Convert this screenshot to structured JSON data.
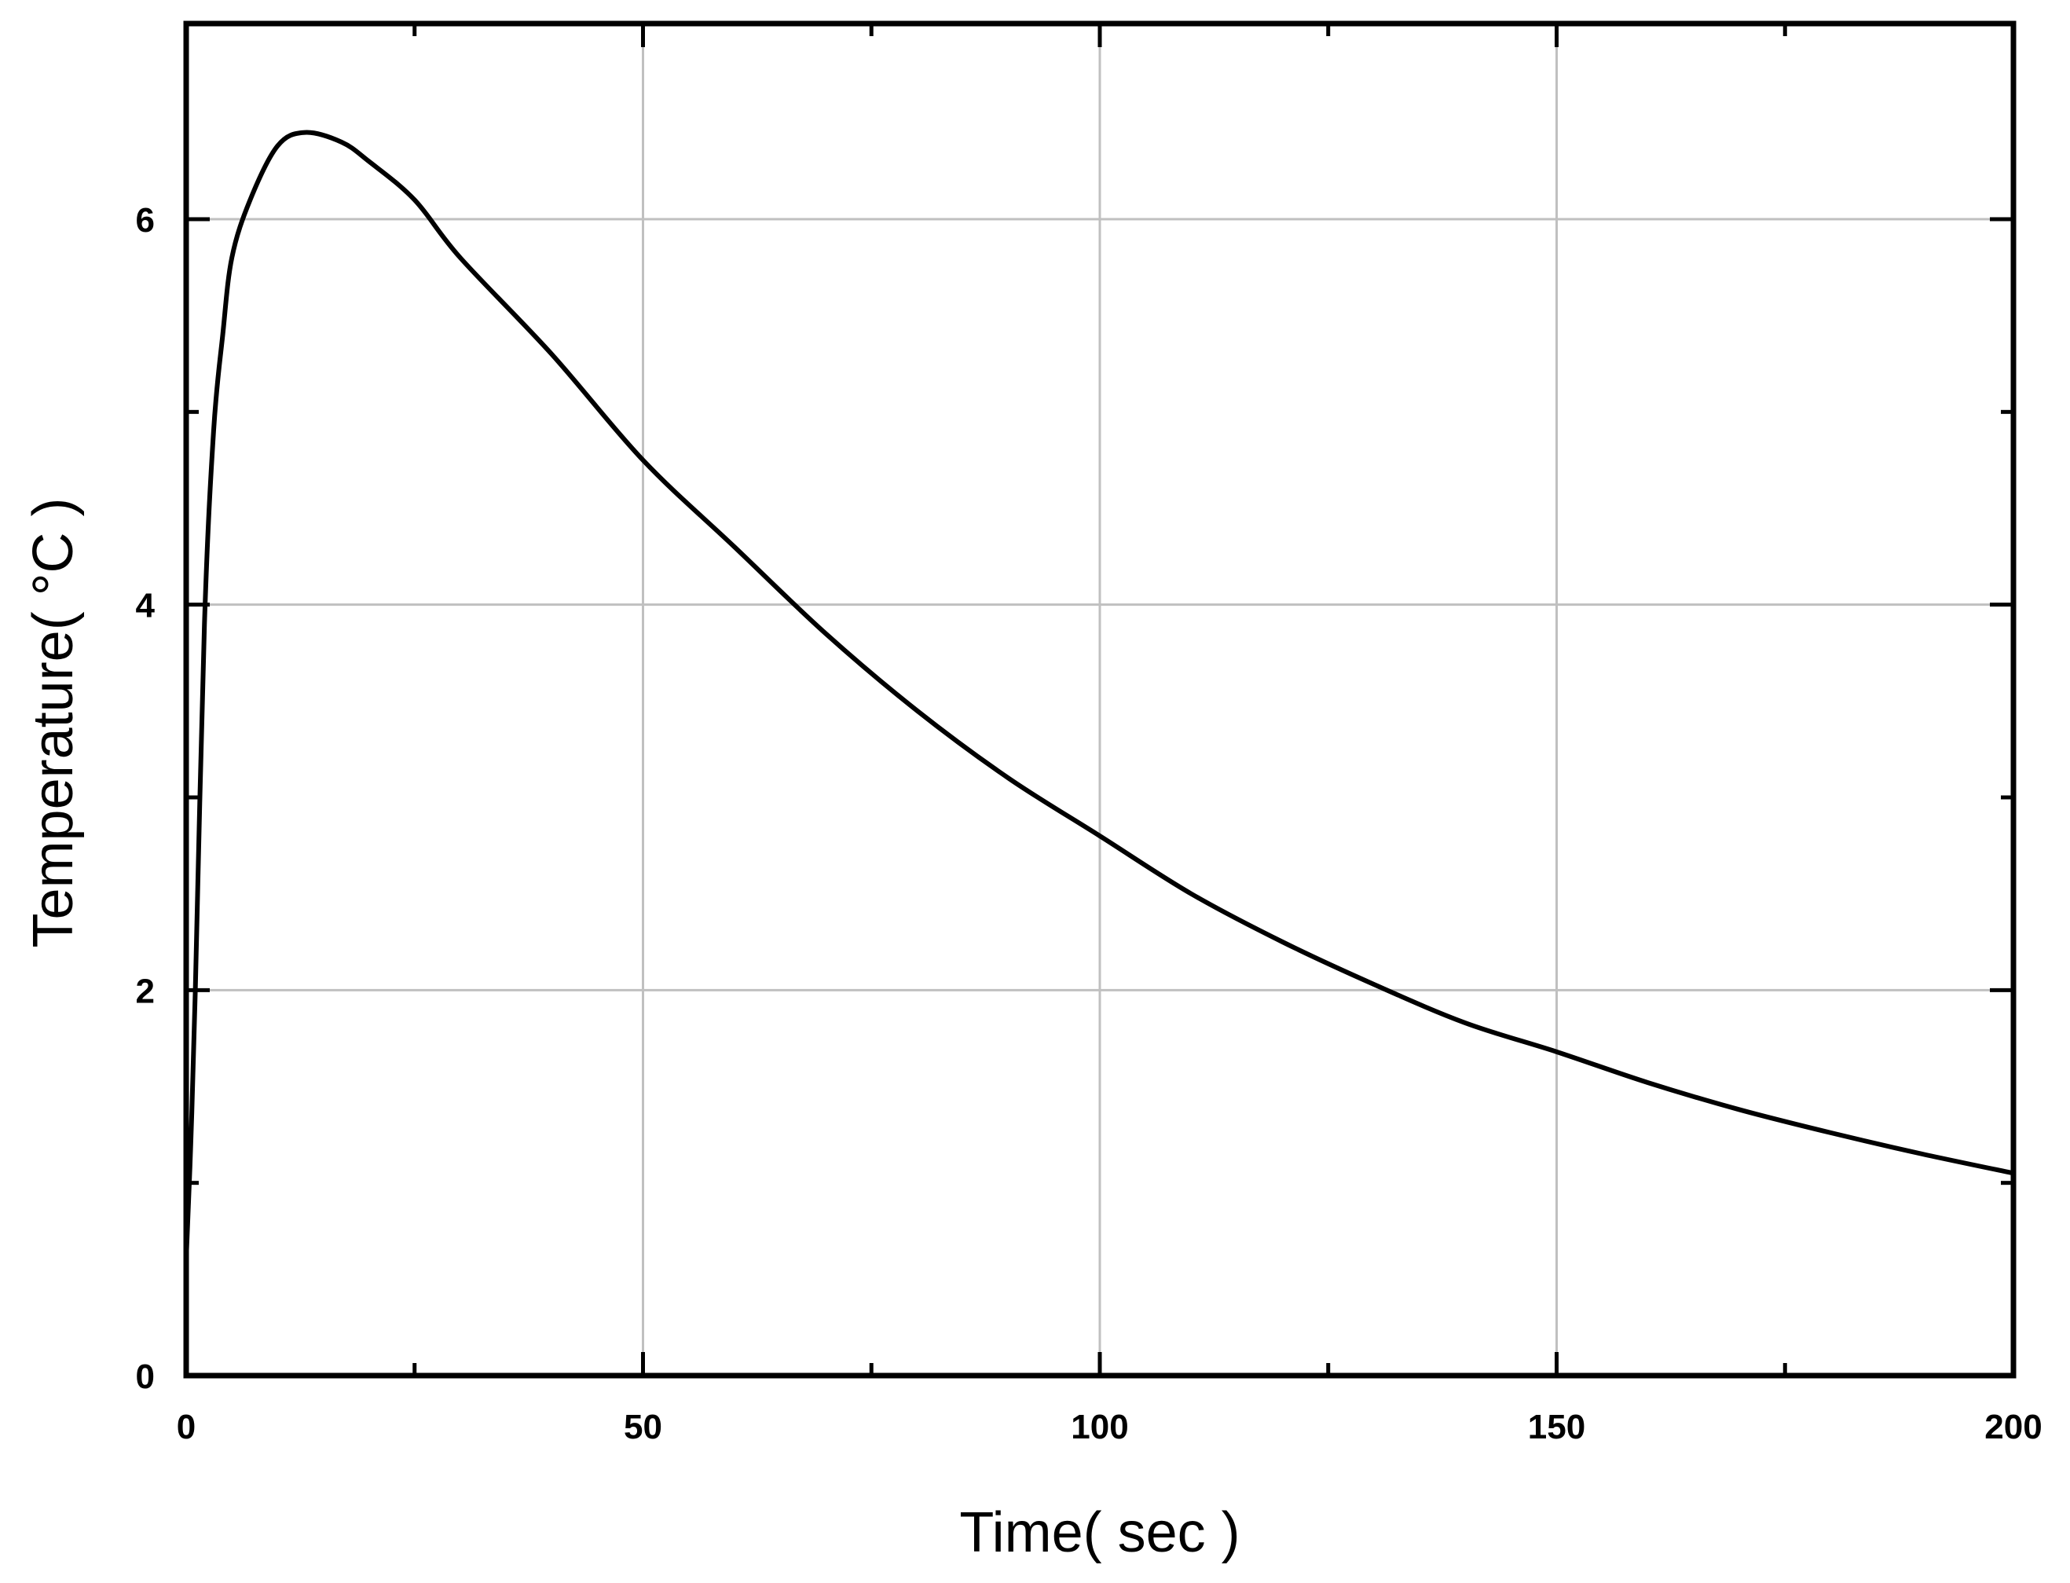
{
  "chart_data": {
    "type": "line",
    "title": "",
    "xlabel": "Time( sec )",
    "ylabel": "Temperature( °C )",
    "xlim": [
      0,
      200
    ],
    "ylim": [
      0,
      7
    ],
    "xticks": [
      0,
      50,
      100,
      150,
      200
    ],
    "yticks": [
      0,
      2,
      4,
      6
    ],
    "grid": true,
    "legend": null,
    "series": [
      {
        "name": "Temperature",
        "color": "#000000",
        "x": [
          0,
          0.5,
          1,
          2,
          3,
          4,
          5,
          7,
          10,
          13,
          17,
          20,
          25,
          30,
          40,
          50,
          60,
          70,
          80,
          90,
          100,
          110,
          120,
          130,
          140,
          150,
          160,
          170,
          180,
          190,
          200
        ],
        "y": [
          0.6,
          1.2,
          2.0,
          3.9,
          4.9,
          5.4,
          5.8,
          6.1,
          6.38,
          6.45,
          6.4,
          6.3,
          6.1,
          5.8,
          5.3,
          4.75,
          4.3,
          3.85,
          3.45,
          3.1,
          2.8,
          2.5,
          2.25,
          2.03,
          1.83,
          1.68,
          1.52,
          1.38,
          1.26,
          1.15,
          1.05
        ]
      }
    ]
  }
}
